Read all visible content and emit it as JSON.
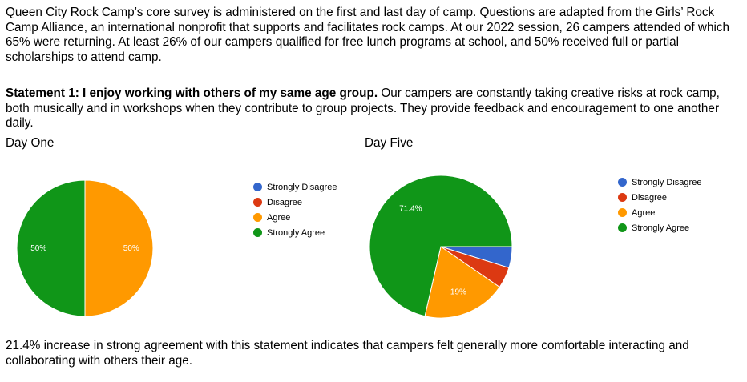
{
  "intro": "Queen City Rock Camp’s core survey is administered on the first and last day of camp. Questions are adapted from the Girls’ Rock Camp Alliance, an international nonprofit that supports and facilitates rock camps. At our 2022 session, 26 campers attended of which 65% were returning. At least 26% of our campers qualified for free lunch programs at school, and 50% received full or partial scholarships to attend camp.",
  "statement": {
    "heading": "Statement 1: I enjoy working with others of my same age group.",
    "body": " Our campers are constantly taking creative risks at rock camp, both musically and in workshops when they contribute to group projects. They provide feedback and encouragement to one another daily."
  },
  "conclusion": "21.4% increase in strong agreement with this statement indicates that campers felt generally more comfortable interacting and collaborating with others their age.",
  "chart_data": [
    {
      "type": "pie",
      "title": "Day One",
      "categories": [
        "Strongly Disagree",
        "Disagree",
        "Agree",
        "Strongly Agree"
      ],
      "values": [
        0,
        0,
        50,
        50
      ],
      "labels": [
        "",
        "",
        "50%",
        "50%"
      ],
      "colors": [
        "#3366cc",
        "#dc3912",
        "#ff9900",
        "#109618"
      ],
      "legend_position": "right"
    },
    {
      "type": "pie",
      "title": "Day Five",
      "categories": [
        "Strongly Disagree",
        "Disagree",
        "Agree",
        "Strongly Agree"
      ],
      "values": [
        4.8,
        4.8,
        19,
        71.4
      ],
      "labels": [
        "",
        "",
        "19%",
        "71.4%"
      ],
      "colors": [
        "#3366cc",
        "#dc3912",
        "#ff9900",
        "#109618"
      ],
      "legend_position": "right"
    }
  ]
}
